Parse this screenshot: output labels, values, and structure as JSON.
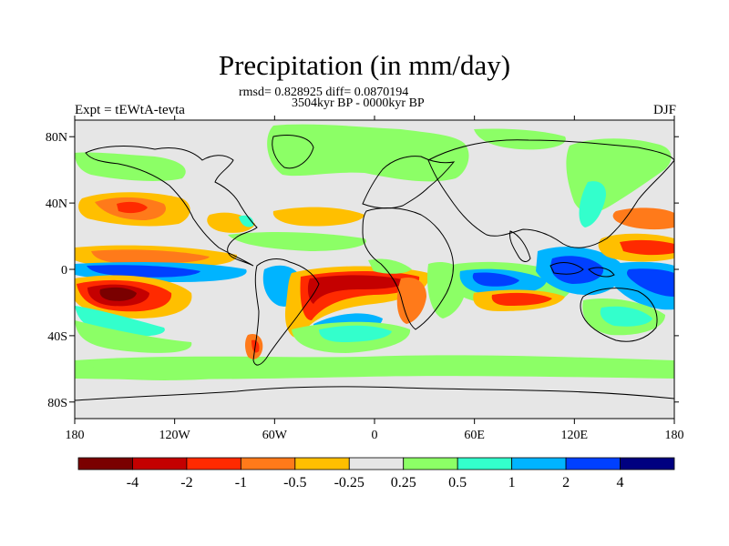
{
  "title": "Precipitation (in mm/day)",
  "stats_line_1": "rmsd= 0.828925 diff= 0.0870194",
  "stats_line_2": "3504kyr BP - 0000kyr BP",
  "left_label": "Expt = tEWtA-tevta",
  "right_label": "DJF",
  "axes": {
    "x_ticks": [
      "180",
      "120W",
      "60W",
      "0",
      "60E",
      "120E",
      "180"
    ],
    "y_ticks": [
      "80N",
      "40N",
      "0",
      "40S",
      "80S"
    ]
  },
  "colorbar": {
    "labels": [
      "-4",
      "-2",
      "-1",
      "-0.5",
      "-0.25",
      "0.25",
      "0.5",
      "1",
      "2",
      "4"
    ],
    "colors": [
      "#7a0000",
      "#c40000",
      "#ff2a00",
      "#ff7a1a",
      "#ffbf00",
      "#e6e6e6",
      "#8cff66",
      "#33ffcc",
      "#00b4ff",
      "#0040ff",
      "#000080"
    ]
  }
}
